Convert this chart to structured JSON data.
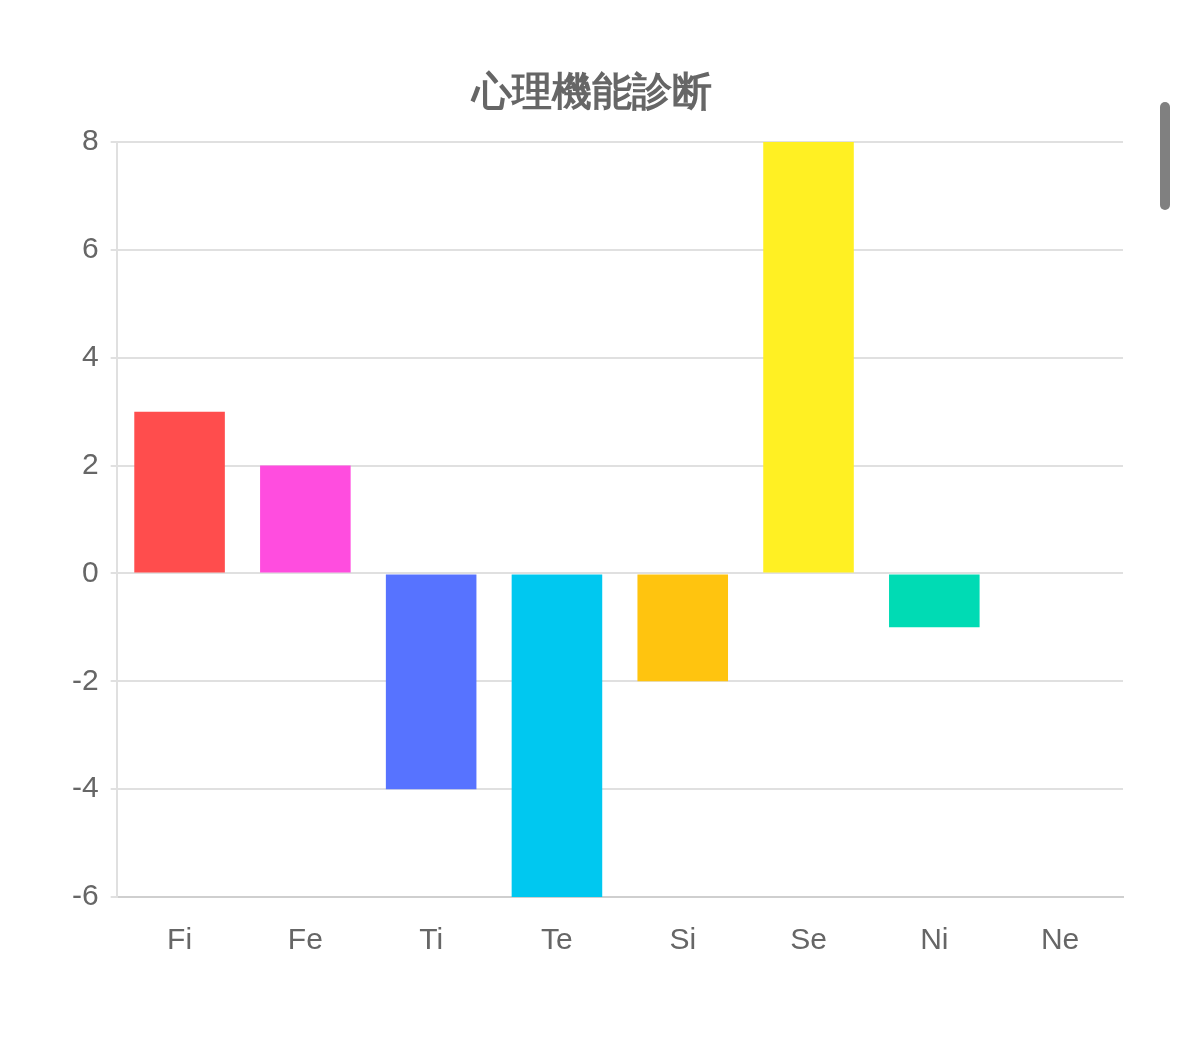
{
  "chart_data": {
    "type": "bar",
    "title": "心理機能診断",
    "categories": [
      "Fi",
      "Fe",
      "Ti",
      "Te",
      "Si",
      "Se",
      "Ni",
      "Ne"
    ],
    "values": [
      3,
      2,
      -4,
      -6,
      -2,
      8,
      -1,
      0
    ],
    "colors": [
      "#ff4d4d",
      "#ff4ddf",
      "#5773ff",
      "#00c8f0",
      "#ffc40f",
      "#fff023",
      "#00dbb4",
      "#8c8c8c"
    ],
    "ylim": [
      -6,
      8
    ],
    "yticks": [
      -6,
      -4,
      -2,
      0,
      2,
      4,
      6,
      8
    ],
    "grid": "y",
    "legend": false
  }
}
